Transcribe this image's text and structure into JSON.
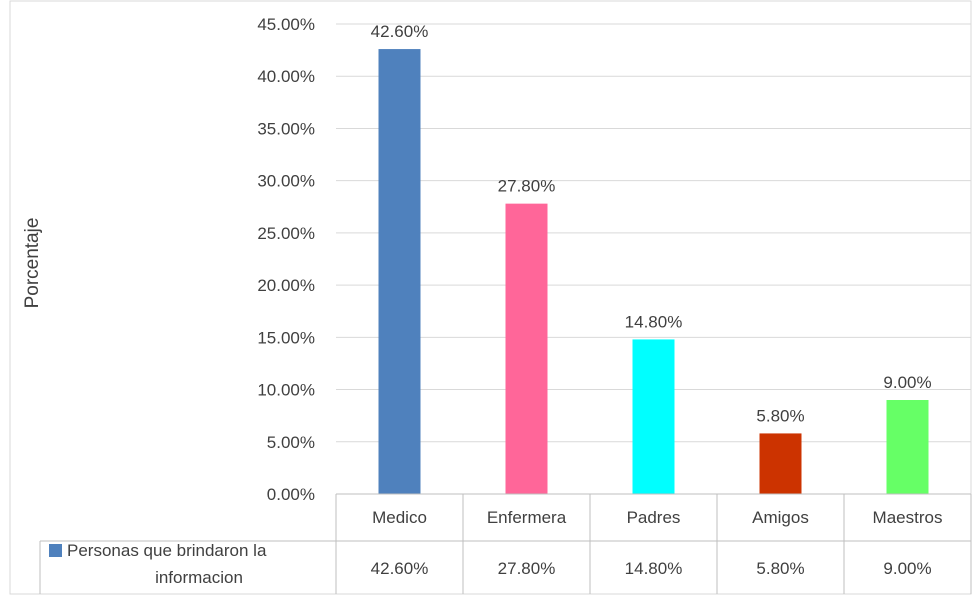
{
  "chart_data": {
    "type": "bar",
    "categories": [
      "Medico",
      "Enfermera",
      "Padres",
      "Amigos",
      "Maestros"
    ],
    "series": [
      {
        "name": "Personas que brindaron la informacion",
        "values": [
          42.6,
          27.8,
          14.8,
          5.8,
          9.0
        ],
        "value_labels": [
          "42.60%",
          "27.80%",
          "14.80%",
          "5.80%",
          "9.00%"
        ],
        "bar_colors": [
          "#4f81bd",
          "#ff6699",
          "#00ffff",
          "#cc3300",
          "#66ff66"
        ],
        "legend_color": "#4f81bd"
      }
    ],
    "title": "",
    "xlabel": "",
    "ylabel": "Porcentaje",
    "ylim": [
      0,
      45
    ],
    "y_ticks": [
      0,
      5,
      10,
      15,
      20,
      25,
      30,
      35,
      40,
      45
    ],
    "y_tick_labels": [
      "0.00%",
      "5.00%",
      "10.00%",
      "15.00%",
      "20.00%",
      "25.00%",
      "30.00%",
      "35.00%",
      "40.00%",
      "45.00%"
    ],
    "grid": true,
    "data_table": true
  },
  "colors": {
    "gridline": "#d9d9d9",
    "axis": "#bfbfbf",
    "text": "#404040",
    "border": "#d9d9d9"
  }
}
